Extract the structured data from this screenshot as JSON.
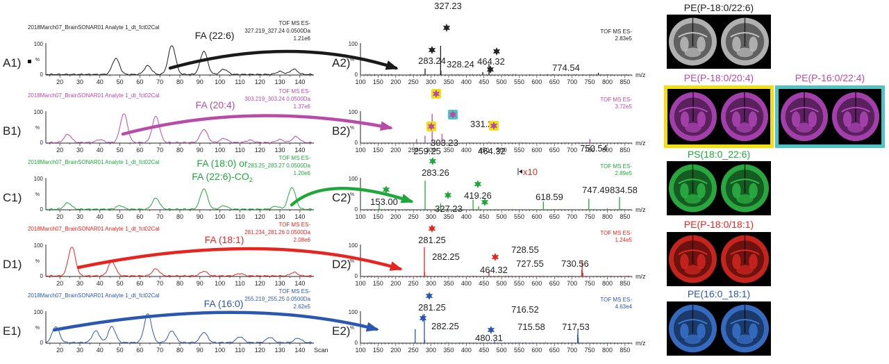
{
  "panels": [
    {
      "id": "A",
      "color": "#1a1a1a",
      "imgColor": "#cfcfcf",
      "left_label": "A1)",
      "right_label": "A2)",
      "chrom_title": "2018March07_BrainSONAR01 Analyte 1_dt_fct02Cal",
      "ms_line1": "TOF MS ES-",
      "ms_line2": "327.219_327.24 0.0500Da",
      "intensity": "1.21e6",
      "fa_lines": [
        "FA (22:6)"
      ],
      "spec_header": "TOF MS ES-",
      "spec_intensity": "2.83e5",
      "peak_labels": [
        "327.23",
        "283.24",
        "328.24",
        "464.32",
        "774.54"
      ],
      "image_label": "PE(P-18:0/22:6)"
    },
    {
      "id": "B",
      "color": "#b84aa8",
      "imgColor": "#c04ac8",
      "left_label": "B1)",
      "right_label": "B2)",
      "chrom_title": "2018March07_BrainSONAR01 Analyte 1_dt_fct02Cal",
      "ms_line1": "TOF MS ES-",
      "ms_line2": "303.219_303.24 0.0500Da",
      "intensity": "1.37e6",
      "fa_lines": [
        "FA (20:4)"
      ],
      "spec_header": "TOF MS ES-",
      "spec_intensity": "3.72e5",
      "peak_labels": [
        "303.23",
        "331.26",
        "259.25",
        "464.32",
        "750.54"
      ],
      "image_label": "PE(P-18:0/20:4)",
      "image_label_2": "PE(P-16:0/22:4)"
    },
    {
      "id": "C",
      "color": "#1ea83a",
      "imgColor": "#2fc44a",
      "left_label": "C1)",
      "right_label": "C2)",
      "chrom_title": "2018March07_BrainSONAR01 Analyte 1_dt_fct02Cal",
      "ms_line1": "TOF MS ES-",
      "ms_line2": "283.25_283.27 0.0500Da",
      "intensity": "1.20e6",
      "fa_lines": [
        "FA (18:0) or",
        "FA (22:6)-CO"
      ],
      "fa_subscript": "2",
      "spec_header": "TOF MS ES-",
      "spec_intensity": "2.89e5",
      "peak_labels": [
        "283.26",
        "153.00",
        "327.23",
        "419.26",
        "618.59",
        "747.49",
        "834.58"
      ],
      "zoom_label": "x10",
      "image_label": "PS(18:0_22:6)"
    },
    {
      "id": "D",
      "color": "#e8241f",
      "imgColor": "#e82a22",
      "left_label": "D1)",
      "right_label": "D2)",
      "chrom_title": "2018March07_BrainSONAR01 Analyte 1_dt_fct02Cal",
      "ms_line1": "TOF MS ES-",
      "ms_line2": "281.234_281.26 0.0500Da",
      "intensity": "2.08e6",
      "fa_lines": [
        "FA (18:1)"
      ],
      "spec_header": "TOF MS ES-",
      "spec_intensity": "1.24e5",
      "peak_labels": [
        "281.25",
        "282.25",
        "464.32",
        "728.55",
        "727.55",
        "730.56"
      ],
      "image_label": "PE(P-18:0/18:1)"
    },
    {
      "id": "E",
      "color": "#2a57b0",
      "imgColor": "#3d7de0",
      "left_label": "E1)",
      "right_label": "E2)",
      "chrom_title": "2018March07_BrainSONAR01 Analyte 1_dt_fct02Cal",
      "ms_line1": "TOF MS ES-",
      "ms_line2": "255.219_255.25 0.0500Da",
      "intensity": "2.62e5",
      "fa_lines": [
        "FA (16:0)"
      ],
      "spec_header": "TOF MS ES-",
      "spec_intensity": "4.63e4",
      "peak_labels": [
        "281.25",
        "282.25",
        "480.31",
        "716.52",
        "715.58",
        "717.53"
      ],
      "image_label": "PE(16:0_18:1)"
    }
  ],
  "chrom_axis": {
    "ticks": [
      "20",
      "30",
      "40",
      "50",
      "60",
      "70",
      "80",
      "90",
      "100",
      "110",
      "120",
      "130",
      "140"
    ],
    "y_ticks": [
      "0",
      "100"
    ],
    "y_unit": "%",
    "xlabel_last": "Scan"
  },
  "spec_axis": {
    "ticks": [
      "100",
      "150",
      "200",
      "250",
      "300",
      "350",
      "400",
      "450",
      "500",
      "550",
      "600",
      "650",
      "700",
      "750",
      "800",
      "850"
    ],
    "y_ticks": [
      "0",
      "100"
    ],
    "y_unit": "%",
    "xlabel": "m/z"
  },
  "highlight_colors": {
    "yellow": "#f2e00e",
    "cyan": "#4ec4c4"
  },
  "chart_data": [
    {
      "type": "line",
      "title": "A1",
      "x_range": [
        13,
        147
      ],
      "ylim": [
        0,
        100
      ],
      "peaks": [
        [
          48,
          55
        ],
        [
          64,
          30
        ],
        [
          76,
          100
        ],
        [
          92,
          80
        ],
        [
          102,
          18
        ],
        [
          130,
          10
        ],
        [
          137,
          18
        ]
      ]
    },
    {
      "type": "line",
      "title": "B1",
      "x_range": [
        13,
        147
      ],
      "ylim": [
        0,
        100
      ],
      "peaks": [
        [
          24,
          28
        ],
        [
          40,
          10
        ],
        [
          52,
          100
        ],
        [
          68,
          90
        ],
        [
          92,
          45
        ],
        [
          102,
          14
        ],
        [
          115,
          8
        ],
        [
          130,
          10
        ],
        [
          138,
          20
        ]
      ]
    },
    {
      "type": "line",
      "title": "C1",
      "x_range": [
        13,
        147
      ],
      "ylim": [
        0,
        100
      ],
      "peaks": [
        [
          24,
          22
        ],
        [
          50,
          12
        ],
        [
          68,
          38
        ],
        [
          92,
          70
        ],
        [
          102,
          12
        ],
        [
          128,
          10
        ],
        [
          136,
          75
        ]
      ]
    },
    {
      "type": "line",
      "title": "D1",
      "x_range": [
        13,
        147
      ],
      "ylim": [
        0,
        100
      ],
      "peaks": [
        [
          26,
          100
        ],
        [
          46,
          50
        ],
        [
          68,
          24
        ],
        [
          92,
          16
        ],
        [
          110,
          8
        ],
        [
          137,
          12
        ]
      ]
    },
    {
      "type": "line",
      "title": "E1",
      "x_range": [
        13,
        147
      ],
      "ylim": [
        0,
        100
      ],
      "peaks": [
        [
          18,
          55
        ],
        [
          38,
          40
        ],
        [
          46,
          55
        ],
        [
          64,
          100
        ],
        [
          76,
          40
        ],
        [
          92,
          35
        ],
        [
          110,
          20
        ],
        [
          125,
          18
        ],
        [
          139,
          15
        ]
      ]
    },
    {
      "type": "bar",
      "title": "A2",
      "xlabel": "m/z",
      "x_range": [
        100,
        870
      ],
      "ylim": [
        0,
        100
      ],
      "peaks": [
        [
          283.24,
          22
        ],
        [
          327.23,
          100
        ],
        [
          328.24,
          15
        ],
        [
          447,
          10
        ],
        [
          464.32,
          38
        ],
        [
          774.54,
          8
        ]
      ]
    },
    {
      "type": "bar",
      "title": "B2",
      "xlabel": "m/z",
      "x_range": [
        100,
        870
      ],
      "ylim": [
        0,
        100
      ],
      "peaks": [
        [
          259.25,
          14
        ],
        [
          283,
          25
        ],
        [
          303.23,
          100
        ],
        [
          331.26,
          32
        ],
        [
          464.32,
          4
        ],
        [
          750.54,
          14
        ]
      ]
    },
    {
      "type": "bar",
      "title": "C2",
      "xlabel": "m/z",
      "x_range": [
        100,
        870
      ],
      "ylim": [
        0,
        100
      ],
      "peaks": [
        [
          153.0,
          20
        ],
        [
          283.26,
          100
        ],
        [
          327.23,
          22
        ],
        [
          419.26,
          35
        ],
        [
          435,
          12
        ],
        [
          618.59,
          28
        ],
        [
          747.49,
          38
        ],
        [
          800,
          5
        ],
        [
          834.58,
          43
        ]
      ]
    },
    {
      "type": "bar",
      "title": "D2",
      "xlabel": "m/z",
      "x_range": [
        100,
        870
      ],
      "ylim": [
        0,
        100
      ],
      "peaks": [
        [
          281.25,
          100
        ],
        [
          282.25,
          15
        ],
        [
          464.32,
          18
        ],
        [
          727.55,
          22
        ],
        [
          728.55,
          55
        ],
        [
          730.56,
          12
        ]
      ]
    },
    {
      "type": "bar",
      "title": "E2",
      "xlabel": "m/z",
      "x_range": [
        100,
        870
      ],
      "ylim": [
        0,
        100
      ],
      "peaks": [
        [
          255.2,
          48
        ],
        [
          281.25,
          100
        ],
        [
          282.25,
          12
        ],
        [
          480.31,
          6
        ],
        [
          715.58,
          30
        ],
        [
          716.52,
          50
        ],
        [
          717.53,
          18
        ]
      ]
    }
  ]
}
